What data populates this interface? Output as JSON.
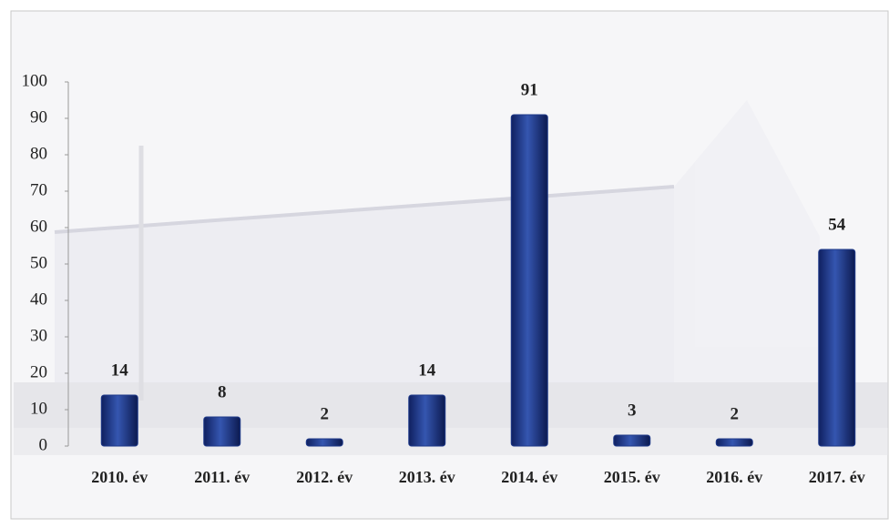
{
  "chart_data": {
    "type": "bar",
    "categories": [
      "2010. év",
      "2011. év",
      "2012. év",
      "2013. év",
      "2014. év",
      "2015. év",
      "2016. év",
      "2017. év"
    ],
    "values": [
      14,
      8,
      2,
      14,
      91,
      3,
      2,
      54
    ],
    "color": "#1f3a8a",
    "ylim": [
      0,
      100
    ],
    "yticks": [
      0,
      10,
      20,
      30,
      40,
      50,
      60,
      70,
      80,
      90,
      100
    ],
    "grid": false
  }
}
